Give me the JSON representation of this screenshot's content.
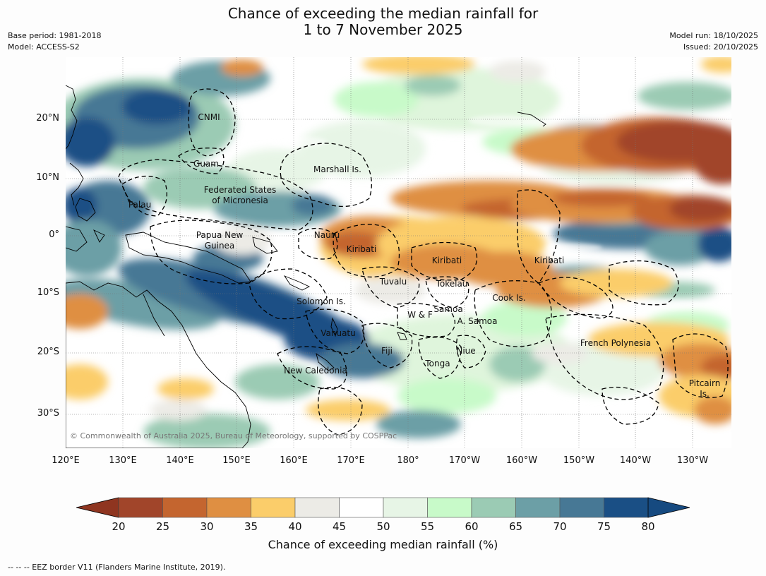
{
  "title_line1": "Chance of exceeding the median rainfall for",
  "title_line2": "1 to 7 November 2025",
  "meta": {
    "base_period": "Base period: 1981-2018",
    "model": "Model: ACCESS-S2",
    "model_run": "Model run: 18/10/2025",
    "issued": "Issued: 20/10/2025"
  },
  "copyright": "© Commonwealth of Australia 2025, Bureau of Meteorology, supported by COSPPac",
  "footer": "--  --  -- EEZ border V11 (Flanders Marine Institute, 2019).",
  "longitude_labels": [
    "120°E",
    "130°E",
    "140°E",
    "150°E",
    "160°E",
    "170°E",
    "180°",
    "170°W",
    "160°W",
    "150°W",
    "140°W",
    "130°W"
  ],
  "latitude_labels": [
    "20°N",
    "10°N",
    "0°",
    "10°S",
    "20°S",
    "30°S"
  ],
  "places": [
    "CNMI",
    "Guam",
    "Marshall Is.",
    "Federated States",
    "of Micronesia",
    "Palau",
    "Papua New",
    "Guinea",
    "Nauru",
    "Kiribati",
    "Kiribati",
    "Kiribati",
    "Tuvalu",
    "Tokelau",
    "Cook Is.",
    "Solomon Is.",
    "Samoa",
    "W & F",
    "A. Samoa",
    "Vanuatu",
    "Fiji",
    "Niue",
    "French Polynesia",
    "Tonga",
    "New Caledonia",
    "Pitcairn",
    "Is."
  ],
  "colorbar": {
    "label": "Chance of exceeding median rainfall (%)",
    "ticks": [
      "20",
      "25",
      "30",
      "35",
      "40",
      "45",
      "50",
      "55",
      "60",
      "65",
      "70",
      "75",
      "80"
    ],
    "colors": [
      "#a1452a",
      "#c4652f",
      "#df8f42",
      "#fbcd6a",
      "#ecebe6",
      "#ffffff",
      "#ffffff",
      "#e7f5e6",
      "#c8fac9",
      "#9bcbb4",
      "#6c9fa6",
      "#477895",
      "#1a4f85"
    ],
    "low_color": "#8f3520",
    "high_color": "#164a80"
  }
}
